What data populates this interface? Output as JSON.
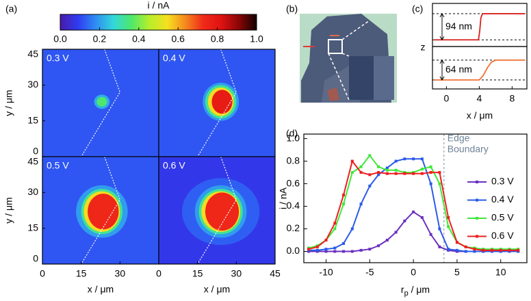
{
  "chart_data": [
    {
      "type": "colorbar",
      "panel": "(a)",
      "title": "i / nA",
      "clim": [
        0,
        1
      ],
      "ticks": [
        {
          "value": 0,
          "label": "0.0"
        },
        {
          "value": 0.2,
          "label": "0.2"
        },
        {
          "value": 0.4,
          "label": "0.4"
        },
        {
          "value": 0.6,
          "label": "0.6"
        },
        {
          "value": 0.8,
          "label": "0.8"
        },
        {
          "value": 1,
          "label": "1.0"
        }
      ],
      "colormap": [
        "#4a1aa8",
        "#2f3cf2",
        "#2f8ef2",
        "#33d8d8",
        "#4ee86a",
        "#b8ee2a",
        "#f5e020",
        "#f58a1e",
        "#f02a1a",
        "#e01212",
        "#8a0606",
        "#120000"
      ]
    },
    {
      "type": "heatmap",
      "label": "0.3 V",
      "xlim": [
        0,
        45
      ],
      "ylim": [
        0,
        45
      ],
      "yticks": [
        0,
        15,
        30,
        45
      ],
      "ylabel": "y / μm",
      "background": 0.12,
      "spots": [
        {
          "x": 23,
          "y": 23,
          "rx": 3,
          "ry": 3,
          "value": 0.22
        },
        {
          "x": 23,
          "y": 23,
          "rx": 2,
          "ry": 2,
          "value": 0.36
        }
      ],
      "edge": {
        "x": [
          24,
          30,
          15
        ],
        "y": [
          45,
          27,
          0
        ]
      }
    },
    {
      "type": "heatmap",
      "label": "0.4 V",
      "xlim": [
        0,
        45
      ],
      "ylim": [
        0,
        45
      ],
      "background": 0.12,
      "spots": [
        {
          "x": 24,
          "y": 23,
          "rx": 7,
          "ry": 8,
          "value": 0.2
        },
        {
          "x": 24,
          "y": 23,
          "rx": 6,
          "ry": 7,
          "value": 0.33
        },
        {
          "x": 24,
          "y": 23,
          "rx": 5,
          "ry": 6,
          "value": 0.55
        },
        {
          "x": 24.5,
          "y": 23,
          "rx": 4,
          "ry": 5,
          "value": 0.78
        }
      ],
      "edge": {
        "x": [
          24,
          30,
          15
        ],
        "y": [
          45,
          27,
          0
        ]
      }
    },
    {
      "type": "heatmap",
      "label": "0.5 V",
      "xlim": [
        0,
        45
      ],
      "ylim": [
        0,
        45
      ],
      "xticks": [
        0,
        15,
        30
      ],
      "yticks": [
        0,
        15,
        30,
        45
      ],
      "xlabel": "x / μm",
      "ylabel": "y / μm",
      "background": 0.12,
      "spots": [
        {
          "x": 23,
          "y": 22,
          "rx": 10,
          "ry": 11,
          "value": 0.2
        },
        {
          "x": 23,
          "y": 22,
          "rx": 8,
          "ry": 9.5,
          "value": 0.33
        },
        {
          "x": 23,
          "y": 22,
          "rx": 7,
          "ry": 8.5,
          "value": 0.55
        },
        {
          "x": 23.5,
          "y": 22,
          "rx": 6,
          "ry": 7.5,
          "value": 0.74
        }
      ],
      "edge": {
        "x": [
          24,
          30,
          15
        ],
        "y": [
          45,
          27,
          0
        ]
      }
    },
    {
      "type": "heatmap",
      "label": "0.6 V",
      "xlim": [
        0,
        45
      ],
      "ylim": [
        0,
        45
      ],
      "xticks": [
        0,
        15,
        30,
        45
      ],
      "xlabel": "x / μm",
      "background": 0.08,
      "spots": [
        {
          "x": 24,
          "y": 22,
          "rx": 15,
          "ry": 14,
          "value": 0.13
        },
        {
          "x": 24,
          "y": 22,
          "rx": 10,
          "ry": 11,
          "value": 0.2
        },
        {
          "x": 24,
          "y": 22,
          "rx": 8.5,
          "ry": 9.5,
          "value": 0.33
        },
        {
          "x": 24,
          "y": 22,
          "rx": 7.5,
          "ry": 8.5,
          "value": 0.55
        },
        {
          "x": 24.5,
          "y": 22,
          "rx": 6.5,
          "ry": 8,
          "value": 0.74
        }
      ],
      "edge": {
        "x": [
          24,
          30,
          15
        ],
        "y": [
          45,
          27,
          0
        ]
      }
    },
    {
      "type": "image",
      "panel": "(b)"
    },
    {
      "type": "profile",
      "panel": "(c)",
      "ylabel": "z",
      "color": "#d8201a",
      "xlim": [
        -1.7,
        9.8
      ],
      "ylim": [
        -24,
        131
      ],
      "x": [
        -1.5,
        0,
        2,
        3.9,
        4.05,
        4.2,
        4.4,
        6,
        8,
        9.6
      ],
      "values": [
        0,
        0,
        0,
        0,
        30,
        80,
        94,
        94,
        94,
        94
      ],
      "step": {
        "value": 94,
        "label": "94 nm"
      }
    },
    {
      "type": "profile",
      "color": "#f07030",
      "xlim": [
        -1.7,
        9.8
      ],
      "ylim": [
        -29,
        108
      ],
      "xticks": [
        0,
        4,
        8
      ],
      "xlabel": "x / μm",
      "x": [
        -1.5,
        0,
        2,
        4,
        4.5,
        5,
        5.5,
        6,
        8,
        9.6
      ],
      "values": [
        0,
        0,
        0,
        0,
        15,
        40,
        58,
        64,
        64,
        64
      ],
      "step": {
        "value": 64,
        "label": "64 nm"
      }
    },
    {
      "type": "line",
      "panel": "(d)",
      "xlim": [
        -12.55,
        13
      ],
      "ylim": [
        -0.1,
        1.04
      ],
      "xticks": [
        -10,
        -5,
        0,
        5,
        10
      ],
      "yticks": [
        {
          "value": 0,
          "label": "0.0"
        },
        {
          "value": 0.2,
          "label": "0.2"
        },
        {
          "value": 0.4,
          "label": "0.4"
        },
        {
          "value": 0.6,
          "label": "0.6"
        },
        {
          "value": 0.8,
          "label": "0.8"
        },
        {
          "value": 1,
          "label": "1.0"
        }
      ],
      "ylabel": "i / nA",
      "xlabel": {
        "text": "r",
        "sub": "p",
        "unit": " / μm"
      },
      "vline": 3.5,
      "annotation": [
        "Edge",
        "Boundary"
      ],
      "legend": "right",
      "x": [
        -12,
        -11,
        -10,
        -9,
        -8,
        -7,
        -6,
        -5,
        -4,
        -3,
        -2,
        -1,
        0,
        1,
        2,
        3,
        4,
        5,
        6,
        7,
        8,
        9,
        10,
        11,
        12
      ],
      "series": [
        {
          "name": "0.3 V",
          "color": "#6a2fc0",
          "values": [
            0,
            0,
            0,
            0,
            0,
            0,
            0.01,
            0.02,
            0.05,
            0.1,
            0.17,
            0.27,
            0.35,
            0.3,
            0.15,
            0.04,
            0.01,
            0,
            0,
            0,
            0,
            0,
            0,
            0,
            0
          ]
        },
        {
          "name": "0.4 V",
          "color": "#2a5ae8",
          "values": [
            0.01,
            0.01,
            0.02,
            0.03,
            0.07,
            0.2,
            0.42,
            0.58,
            0.68,
            0.74,
            0.8,
            0.82,
            0.82,
            0.82,
            0.6,
            0.2,
            0.02,
            0.01,
            0,
            0,
            0,
            0,
            0,
            0,
            0
          ]
        },
        {
          "name": "0.5 V",
          "color": "#3ee83a",
          "values": [
            0.03,
            0.05,
            0.1,
            0.2,
            0.42,
            0.7,
            0.75,
            0.85,
            0.75,
            0.72,
            0.72,
            0.7,
            0.7,
            0.73,
            0.75,
            0.6,
            0.22,
            0.08,
            0.04,
            0.03,
            0.02,
            0.02,
            0.02,
            0.02,
            0.02
          ]
        },
        {
          "name": "0.6 V",
          "color": "#ee1e1e",
          "values": [
            0.02,
            0.04,
            0.1,
            0.25,
            0.5,
            0.8,
            0.7,
            0.68,
            0.7,
            0.69,
            0.69,
            0.69,
            0.69,
            0.69,
            0.7,
            0.7,
            0.3,
            0.08,
            0.04,
            0.02,
            0.01,
            0.01,
            0.01,
            0.01,
            0.01
          ]
        }
      ]
    }
  ]
}
